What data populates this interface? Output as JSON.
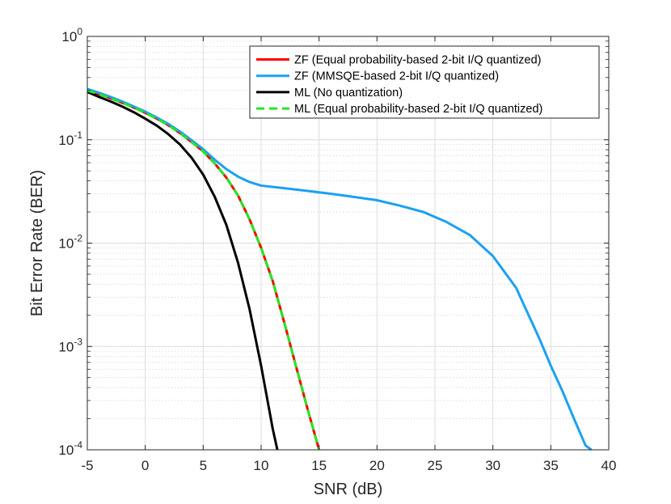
{
  "chart_data": {
    "type": "line",
    "title": "",
    "xlabel": "SNR (dB)",
    "ylabel": "Bit Error Rate (BER)",
    "xlim": [
      -5,
      40
    ],
    "ylim": [
      0.0001,
      1
    ],
    "yscale": "log",
    "grid": true,
    "minor_grid": true,
    "legend_position": "top-right",
    "x_ticks": [
      -5,
      0,
      5,
      10,
      15,
      20,
      25,
      30,
      35,
      40
    ],
    "x_tick_labels": [
      "-5",
      "0",
      "5",
      "10",
      "15",
      "20",
      "25",
      "30",
      "35",
      "40"
    ],
    "y_ticks": [
      {
        "value": 1,
        "base": "10",
        "exp": "0"
      },
      {
        "value": 0.1,
        "base": "10",
        "exp": "-1"
      },
      {
        "value": 0.01,
        "base": "10",
        "exp": "-2"
      },
      {
        "value": 0.001,
        "base": "10",
        "exp": "-3"
      },
      {
        "value": 0.0001,
        "base": "10",
        "exp": "-4"
      }
    ],
    "series": [
      {
        "name": "ZF (Equal probability-based 2-bit I/Q quantized)",
        "color": "#ff0000",
        "style": "solid",
        "x": [
          -5,
          -4,
          -3,
          -2,
          -1,
          0,
          1,
          2,
          3,
          4,
          5,
          6,
          7,
          8,
          9,
          10,
          11,
          12,
          13,
          14,
          15
        ],
        "y": [
          0.3,
          0.276,
          0.252,
          0.228,
          0.205,
          0.182,
          0.16,
          0.138,
          0.116,
          0.095,
          0.077,
          0.059,
          0.043,
          0.029,
          0.017,
          0.009,
          0.0043,
          0.0017,
          0.00065,
          0.00025,
          0.0001
        ]
      },
      {
        "name": "ZF (MMSQE-based 2-bit I/Q quantized)",
        "color": "#1ba1f2",
        "style": "solid",
        "x": [
          -5,
          -4,
          -3,
          -2,
          -1,
          0,
          1,
          2,
          3,
          4,
          5,
          6,
          7,
          8,
          9,
          10,
          12,
          14,
          16,
          18,
          20,
          22,
          24,
          26,
          28,
          30,
          32,
          34,
          35,
          36,
          37,
          38,
          38.5
        ],
        "y": [
          0.31,
          0.285,
          0.26,
          0.235,
          0.21,
          0.187,
          0.164,
          0.142,
          0.12,
          0.099,
          0.081,
          0.064,
          0.052,
          0.044,
          0.039,
          0.036,
          0.034,
          0.032,
          0.03,
          0.028,
          0.026,
          0.023,
          0.02,
          0.016,
          0.012,
          0.0075,
          0.0037,
          0.0012,
          0.00065,
          0.00037,
          0.0002,
          0.00011,
          0.0001
        ]
      },
      {
        "name": "ML (No quantization)",
        "color": "#000000",
        "style": "solid",
        "x": [
          -5,
          -4,
          -3,
          -2,
          -1,
          0,
          1,
          2,
          3,
          4,
          5,
          6,
          7,
          8,
          9,
          10,
          11,
          11.4
        ],
        "y": [
          0.29,
          0.26,
          0.235,
          0.21,
          0.185,
          0.16,
          0.137,
          0.113,
          0.09,
          0.067,
          0.046,
          0.028,
          0.015,
          0.0065,
          0.0023,
          0.00065,
          0.00016,
          0.0001
        ]
      },
      {
        "name": "ML (Equal probability-based 2-bit I/Q quantized)",
        "color": "#22e822",
        "style": "dashed",
        "x": [
          -5,
          -4,
          -3,
          -2,
          -1,
          0,
          1,
          2,
          3,
          4,
          5,
          6,
          7,
          8,
          9,
          10,
          11,
          12,
          13,
          14,
          15
        ],
        "y": [
          0.3,
          0.276,
          0.252,
          0.228,
          0.205,
          0.182,
          0.16,
          0.138,
          0.116,
          0.095,
          0.077,
          0.059,
          0.043,
          0.029,
          0.017,
          0.009,
          0.0043,
          0.0017,
          0.00065,
          0.00025,
          0.0001
        ]
      }
    ]
  }
}
